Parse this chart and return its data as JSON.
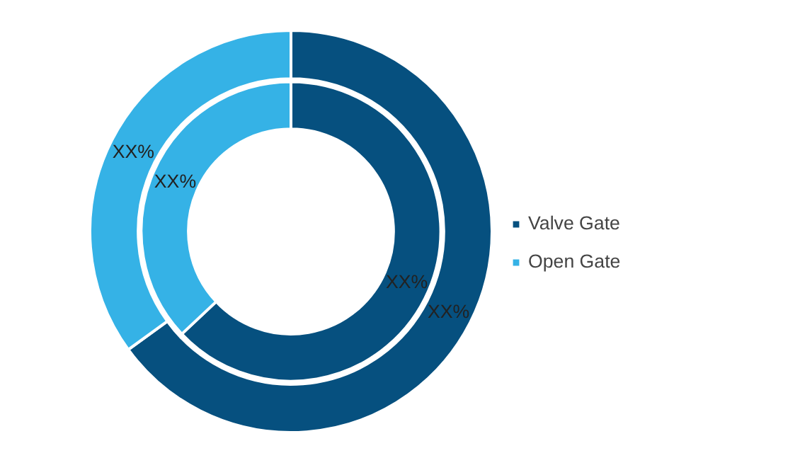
{
  "chart_data": {
    "type": "donut",
    "categories": [
      "Valve Gate",
      "Open Gate"
    ],
    "series": [
      {
        "values": [
          65,
          35
        ],
        "colors": [
          "#06507f",
          "#35b2e6"
        ],
        "value_labels": [
          "XX%",
          "XX%"
        ]
      },
      {
        "values": [
          63,
          37
        ],
        "colors": [
          "#06507f",
          "#35b2e6"
        ],
        "value_labels": [
          "XX%",
          "XX%"
        ]
      }
    ],
    "legend": "right"
  }
}
